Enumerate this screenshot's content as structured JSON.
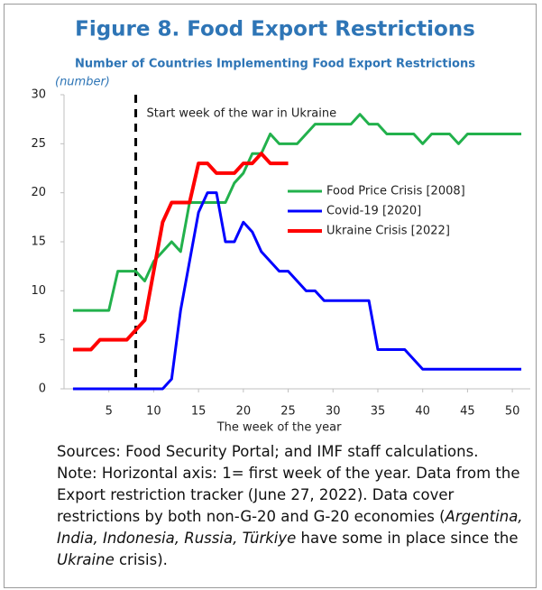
{
  "chart_data": {
    "type": "line",
    "title": "Figure 8. Food Export Restrictions",
    "subtitle": "Number of Countries Implementing Food Export Restrictions",
    "y_unit": "(number)",
    "x_label": "The week of the year",
    "annotation": "Start week of the war in Ukraine",
    "event_week": 8,
    "x": [
      1,
      2,
      3,
      4,
      5,
      6,
      7,
      8,
      9,
      10,
      11,
      12,
      13,
      14,
      15,
      16,
      17,
      18,
      19,
      20,
      21,
      22,
      23,
      24,
      25,
      26,
      27,
      28,
      29,
      30,
      31,
      32,
      33,
      34,
      35,
      36,
      37,
      38,
      39,
      40,
      41,
      42,
      43,
      44,
      45,
      46,
      47,
      48,
      49,
      50,
      51
    ],
    "series": [
      {
        "name": "Food Price Crisis [2008]",
        "color": "#22b14c",
        "values": [
          8,
          8,
          8,
          8,
          8,
          12,
          12,
          12,
          11,
          13,
          14,
          15,
          14,
          19,
          19,
          19,
          19,
          19,
          21,
          22,
          24,
          24,
          26,
          25,
          25,
          25,
          26,
          27,
          27,
          27,
          27,
          27,
          28,
          27,
          27,
          26,
          26,
          26,
          26,
          25,
          26,
          26,
          26,
          25,
          26,
          26,
          26,
          26,
          26,
          26,
          26
        ]
      },
      {
        "name": "Covid-19 [2020]",
        "color": "#0000ff",
        "values": [
          0,
          0,
          0,
          0,
          0,
          0,
          0,
          0,
          0,
          0,
          0,
          1,
          8,
          13,
          18,
          20,
          20,
          15,
          15,
          17,
          16,
          14,
          13,
          12,
          12,
          11,
          10,
          10,
          9,
          9,
          9,
          9,
          9,
          9,
          4,
          4,
          4,
          4,
          3,
          2,
          2,
          2,
          2,
          2,
          2,
          2,
          2,
          2,
          2,
          2,
          2
        ]
      },
      {
        "name": "Ukraine Crisis [2022]",
        "color": "#ff0000",
        "values": [
          4,
          4,
          4,
          5,
          5,
          5,
          5,
          6,
          7,
          12,
          17,
          19,
          19,
          19,
          23,
          23,
          22,
          22,
          22,
          23,
          23,
          24,
          23,
          23,
          23,
          null,
          null,
          null,
          null,
          null,
          null,
          null,
          null,
          null,
          null,
          null,
          null,
          null,
          null,
          null,
          null,
          null,
          null,
          null,
          null,
          null,
          null,
          null,
          null,
          null,
          null
        ]
      }
    ],
    "xlim": [
      0,
      52
    ],
    "xticks": [
      5,
      10,
      15,
      20,
      25,
      30,
      35,
      40,
      45,
      50
    ],
    "ylim": [
      0,
      30
    ],
    "yticks": [
      0,
      5,
      10,
      15,
      20,
      25,
      30
    ],
    "legend": "right",
    "source": "Sources: Food Security Portal; and IMF staff calculations.",
    "note": [
      {
        "text": "Note: Horizontal axis:  1= first week of the year. Data from the Export restriction tracker (June 27, 2022).  Data cover restrictions by both non-G-20 and G-20 economies (",
        "italic": false
      },
      {
        "text": "Argentina, India, Indonesia, Russia, Türkiye",
        "italic": true
      },
      {
        "text": " have some in place since the ",
        "italic": false
      },
      {
        "text": "Ukraine",
        "italic": true
      },
      {
        "text": " crisis).",
        "italic": false
      }
    ]
  }
}
